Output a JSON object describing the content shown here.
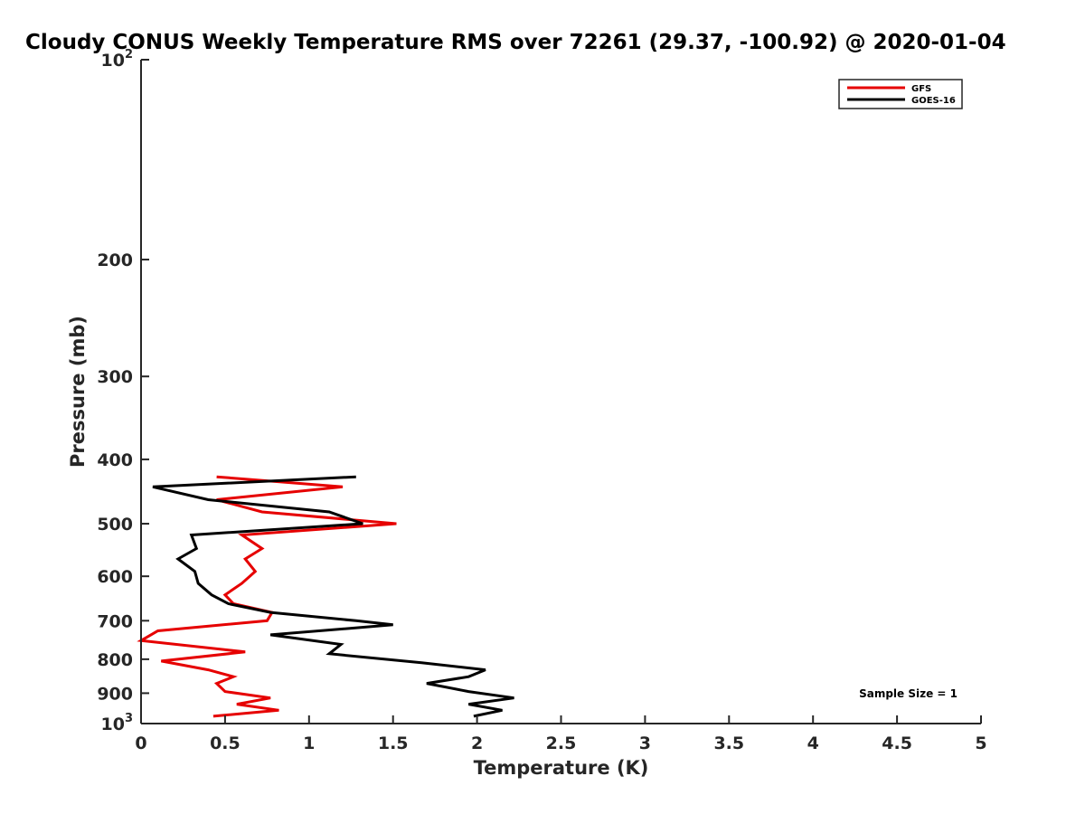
{
  "chart_data": {
    "type": "line",
    "title": "Cloudy CONUS Weekly Temperature RMS over 72261 (29.37, -100.92) @ 2020-01-04",
    "xlabel": "Temperature (K)",
    "ylabel": "Pressure (mb)",
    "xlim": [
      0,
      5
    ],
    "ylim": [
      100,
      1000
    ],
    "yscale": "log",
    "y_reversed": true,
    "x_ticks": [
      "0",
      "0.5",
      "1",
      "1.5",
      "2",
      "2.5",
      "3",
      "3.5",
      "4",
      "4.5",
      "5"
    ],
    "y_ticks": [
      {
        "value": 100,
        "base": "10",
        "exp": "2"
      },
      {
        "value": 200,
        "label": "200"
      },
      {
        "value": 300,
        "label": "300"
      },
      {
        "value": 400,
        "label": "400"
      },
      {
        "value": 500,
        "label": "500"
      },
      {
        "value": 600,
        "label": "600"
      },
      {
        "value": 700,
        "label": "700"
      },
      {
        "value": 800,
        "label": "800"
      },
      {
        "value": 900,
        "label": "900"
      },
      {
        "value": 1000,
        "base": "10",
        "exp": "3"
      }
    ],
    "grid": false,
    "legend_position": "top-right",
    "annotation": "Sample Size = 1",
    "series": [
      {
        "name": "GFS",
        "color": "#e60000",
        "points": [
          [
            0.45,
            425
          ],
          [
            1.2,
            440
          ],
          [
            0.45,
            460
          ],
          [
            0.72,
            480
          ],
          [
            1.52,
            500
          ],
          [
            0.6,
            520
          ],
          [
            0.72,
            545
          ],
          [
            0.62,
            565
          ],
          [
            0.68,
            590
          ],
          [
            0.6,
            615
          ],
          [
            0.5,
            640
          ],
          [
            0.55,
            660
          ],
          [
            0.78,
            680
          ],
          [
            0.75,
            700
          ],
          [
            0.1,
            725
          ],
          [
            0.0,
            750
          ],
          [
            0.62,
            780
          ],
          [
            0.12,
            805
          ],
          [
            0.4,
            830
          ],
          [
            0.55,
            850
          ],
          [
            0.45,
            870
          ],
          [
            0.5,
            895
          ],
          [
            0.77,
            915
          ],
          [
            0.57,
            935
          ],
          [
            0.82,
            955
          ],
          [
            0.43,
            975
          ]
        ]
      },
      {
        "name": "GOES-16",
        "color": "#000000",
        "points": [
          [
            1.28,
            425
          ],
          [
            0.07,
            440
          ],
          [
            0.4,
            460
          ],
          [
            1.12,
            480
          ],
          [
            1.32,
            500
          ],
          [
            0.3,
            520
          ],
          [
            0.33,
            545
          ],
          [
            0.22,
            565
          ],
          [
            0.32,
            590
          ],
          [
            0.34,
            615
          ],
          [
            0.42,
            640
          ],
          [
            0.52,
            660
          ],
          [
            0.77,
            680
          ],
          [
            1.28,
            700
          ],
          [
            1.5,
            710
          ],
          [
            0.77,
            735
          ],
          [
            1.19,
            760
          ],
          [
            1.12,
            785
          ],
          [
            1.67,
            810
          ],
          [
            2.05,
            830
          ],
          [
            1.95,
            850
          ],
          [
            1.7,
            870
          ],
          [
            1.95,
            895
          ],
          [
            2.22,
            915
          ],
          [
            1.95,
            935
          ],
          [
            2.15,
            955
          ],
          [
            1.98,
            975
          ]
        ]
      }
    ]
  }
}
